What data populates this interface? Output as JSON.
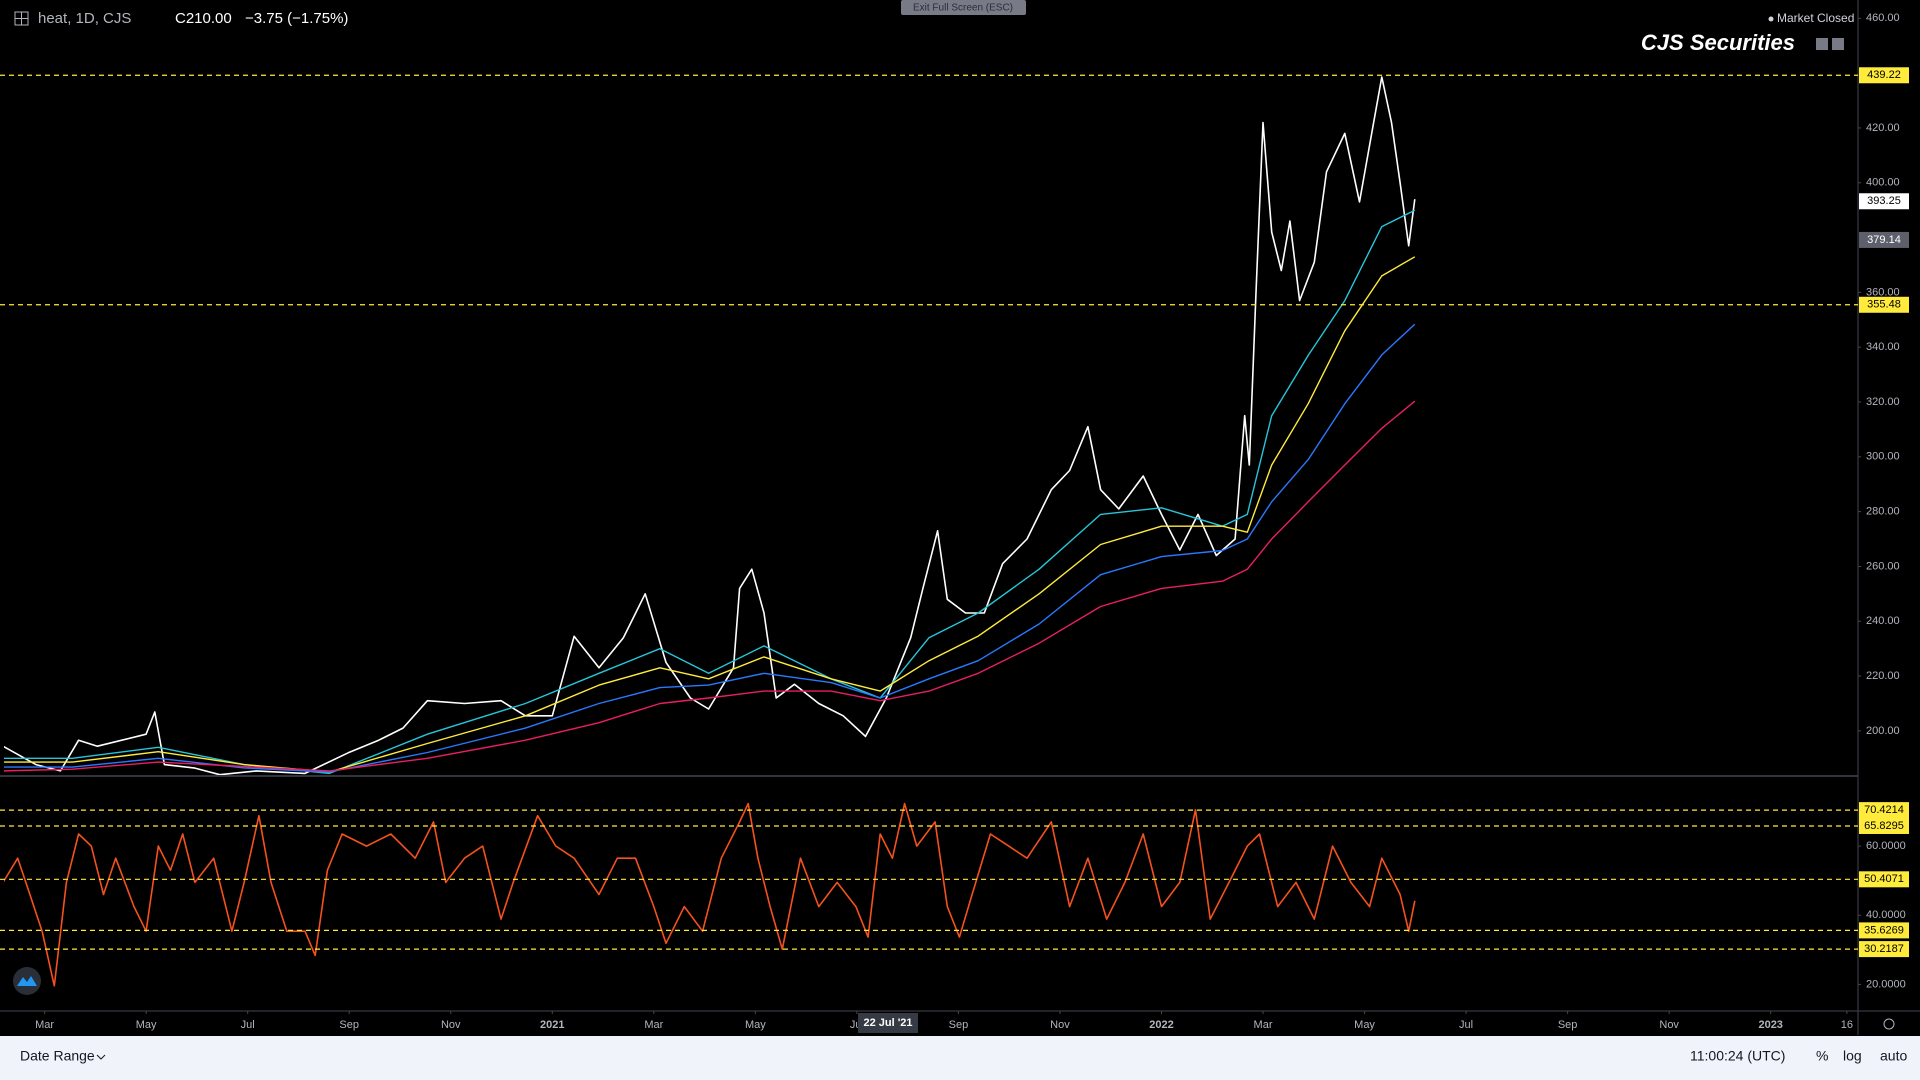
{
  "header": {
    "symbol": "heat, 1D, CJS",
    "quote": "C210.00",
    "change": "−3.75 (−1.75%)",
    "status": "Market Closed",
    "brand": "CJS Securities",
    "exit_button": "Exit Full Screen (ESC)"
  },
  "footer": {
    "date_range": "Date Range",
    "clock": "11:00:24 (UTC)",
    "percent": "%",
    "log": "log",
    "auto": "auto"
  },
  "chart_data": [
    {
      "type": "line",
      "xlim": [
        -0.8,
        35.7
      ],
      "ylim": [
        183.9,
        464.5
      ],
      "yticks": [
        {
          "value": 200,
          "label": "200.00"
        },
        {
          "value": 220,
          "label": "220.00"
        },
        {
          "value": 240,
          "label": "240.00"
        },
        {
          "value": 260,
          "label": "260.00"
        },
        {
          "value": 280,
          "label": "280.00"
        },
        {
          "value": 300,
          "label": "300.00"
        },
        {
          "value": 320,
          "label": "320.00"
        },
        {
          "value": 340,
          "label": "340.00"
        },
        {
          "value": 360,
          "label": "360.00"
        },
        {
          "value": 400,
          "label": "400.00"
        },
        {
          "value": 420,
          "label": "420.00"
        },
        {
          "value": 460,
          "label": "460.00"
        }
      ],
      "grid": false,
      "levels": [
        439.22,
        355.48
      ],
      "level_color": "#ffeb3b",
      "price_labels": [
        {
          "value": 393.25,
          "color": "#ffffff",
          "text_color": "#000000"
        },
        {
          "value": 379.14,
          "color": "#5d606b",
          "text_color": "#ffffff"
        }
      ],
      "series": [
        {
          "color": "#ffffff",
          "x": [
            -0.82,
            -0.17,
            0.31,
            0.67,
            1.04,
            1.52,
            2.0,
            2.17,
            2.36,
            2.96,
            3.45,
            4.17,
            5.13,
            5.98,
            6.58,
            7.06,
            7.54,
            8.27,
            8.99,
            9.47,
            10.0,
            10.43,
            10.92,
            11.4,
            11.83,
            12.24,
            12.72,
            13.08,
            13.57,
            13.69,
            13.93,
            14.17,
            14.41,
            14.77,
            15.25,
            15.73,
            16.17,
            16.58,
            17.06,
            17.3,
            17.59,
            17.78,
            18.14,
            18.51,
            18.87,
            19.35,
            19.83,
            20.19,
            20.55,
            20.8,
            21.16,
            21.64,
            22.0,
            22.36,
            22.72,
            23.08,
            23.45,
            23.64,
            23.73,
            23.86,
            24.0,
            24.17,
            24.36,
            24.53,
            24.72,
            25.01,
            25.25,
            25.61,
            25.9,
            26.14,
            26.34,
            26.53,
            26.7,
            26.87,
            26.99
          ],
          "values": [
            194.4,
            187.7,
            185.4,
            196.6,
            194.4,
            196.6,
            198.8,
            206.9,
            187.7,
            186.4,
            184,
            185.4,
            184.5,
            192,
            196.6,
            201,
            211,
            210,
            211,
            205.5,
            205.5,
            234.5,
            223,
            234,
            250,
            225,
            212,
            208,
            223,
            252,
            259,
            243,
            212,
            217,
            210,
            205.5,
            198,
            212,
            234,
            252,
            273,
            248,
            243,
            243,
            261,
            270,
            288,
            295,
            311,
            288,
            281,
            293,
            279,
            266,
            279,
            264,
            270,
            315,
            297,
            359,
            422,
            382,
            368,
            386,
            357,
            371,
            404,
            418,
            393,
            418,
            438.6,
            422,
            400,
            377,
            394
          ]
        },
        {
          "color": "#26c6da",
          "x": [
            -0.82,
            0.55,
            2.24,
            3.93,
            5.61,
            7.54,
            9.47,
            10.92,
            12.12,
            13.08,
            14.17,
            15.49,
            16.46,
            17.42,
            18.39,
            19.59,
            20.8,
            22.0,
            23.2,
            23.69,
            24.17,
            24.89,
            25.61,
            26.34,
            26.99
          ],
          "values": [
            190,
            190,
            194,
            187.7,
            184.5,
            198.8,
            210,
            221,
            230,
            221,
            231,
            219,
            212,
            234,
            243,
            259,
            279,
            281.4,
            274.7,
            279,
            315,
            337,
            357,
            384,
            390
          ]
        },
        {
          "color": "#ffeb3b",
          "x": [
            -0.82,
            0.55,
            2.24,
            3.93,
            5.61,
            7.54,
            9.47,
            10.92,
            12.12,
            13.08,
            14.17,
            15.49,
            16.46,
            17.42,
            18.39,
            19.59,
            20.8,
            22.0,
            23.2,
            23.69,
            24.17,
            24.89,
            25.61,
            26.34,
            26.99
          ],
          "values": [
            188.6,
            188.6,
            192.4,
            187.7,
            185,
            195.4,
            205.5,
            216.7,
            223,
            219,
            227,
            219,
            214.5,
            225.6,
            234.6,
            250,
            268,
            274.7,
            274.7,
            272.5,
            297,
            319.4,
            346,
            366,
            373
          ]
        },
        {
          "color": "#2979ff",
          "x": [
            -0.82,
            0.55,
            2.24,
            3.93,
            5.61,
            7.54,
            9.47,
            10.92,
            12.12,
            13.08,
            14.17,
            15.49,
            16.46,
            17.42,
            18.39,
            19.59,
            20.8,
            22.0,
            23.2,
            23.69,
            24.17,
            24.89,
            25.61,
            26.34,
            26.99
          ],
          "values": [
            186.8,
            186.8,
            190,
            186.5,
            185,
            192.1,
            201,
            210,
            215.8,
            216.7,
            221,
            217.6,
            212,
            219,
            225.6,
            239,
            257,
            263.6,
            265.8,
            270,
            283.6,
            299,
            319.4,
            337.2,
            348.4
          ]
        },
        {
          "color": "#e91e63",
          "x": [
            -0.82,
            0.55,
            2.24,
            3.93,
            5.61,
            7.54,
            9.47,
            10.92,
            12.12,
            13.08,
            14.17,
            15.49,
            16.46,
            17.42,
            18.39,
            19.59,
            20.8,
            22.0,
            23.2,
            23.69,
            24.17,
            24.89,
            25.61,
            26.34,
            26.99
          ],
          "values": [
            185.4,
            186,
            188.6,
            187,
            185.4,
            190,
            196.6,
            203,
            210,
            212,
            214.5,
            214.5,
            211,
            214.5,
            221,
            232,
            245.4,
            252,
            254.6,
            259,
            270,
            283.6,
            297,
            310.4,
            320.3
          ]
        }
      ]
    },
    {
      "type": "line",
      "xlim": [
        -0.8,
        35.7
      ],
      "ylim": [
        12.6,
        80
      ],
      "yticks": [
        {
          "value": 20,
          "label": "20.0000"
        },
        {
          "value": 40,
          "label": "40.0000"
        },
        {
          "value": 60,
          "label": "60.0000"
        }
      ],
      "grid": false,
      "levels": [
        70.4214,
        65.8295,
        50.4071,
        35.6269,
        30.2187
      ],
      "level_color": "#ffeb3b",
      "xticks": [
        {
          "value": 0,
          "label": "Mar"
        },
        {
          "value": 2,
          "label": "May"
        },
        {
          "value": 4,
          "label": "Jul"
        },
        {
          "value": 6,
          "label": "Sep"
        },
        {
          "value": 8,
          "label": "Nov"
        },
        {
          "value": 10,
          "label": "2021"
        },
        {
          "value": 12,
          "label": "Mar"
        },
        {
          "value": 14,
          "label": "May"
        },
        {
          "value": 16,
          "label": "Jul"
        },
        {
          "value": 18,
          "label": "Sep"
        },
        {
          "value": 20,
          "label": "Nov"
        },
        {
          "value": 22,
          "label": "2022"
        },
        {
          "value": 24,
          "label": "Mar"
        },
        {
          "value": 26,
          "label": "May"
        },
        {
          "value": 28,
          "label": "Jul"
        },
        {
          "value": 30,
          "label": "Sep"
        },
        {
          "value": 32,
          "label": "Nov"
        },
        {
          "value": 34,
          "label": "2023"
        },
        {
          "value": 35.5,
          "label": "16"
        }
      ],
      "crosshair_label": "22 Jul '21",
      "series": [
        {
          "color": "#f4511e",
          "x": [
            -0.82,
            -0.53,
            -0.29,
            -0.05,
            0.19,
            0.43,
            0.67,
            0.92,
            1.16,
            1.4,
            1.76,
            2.0,
            2.24,
            2.48,
            2.72,
            2.96,
            3.33,
            3.69,
            3.93,
            4.22,
            4.46,
            4.77,
            5.13,
            5.33,
            5.57,
            5.86,
            6.34,
            6.82,
            7.3,
            7.66,
            7.9,
            8.27,
            8.63,
            8.99,
            9.23,
            9.71,
            10.07,
            10.43,
            10.92,
            11.28,
            11.64,
            12.0,
            12.24,
            12.6,
            12.96,
            13.33,
            13.69,
            13.86,
            14.05,
            14.29,
            14.53,
            14.89,
            15.25,
            15.61,
            15.98,
            16.22,
            16.46,
            16.7,
            16.94,
            17.18,
            17.54,
            17.78,
            18.02,
            18.27,
            18.63,
            18.99,
            19.35,
            19.83,
            20.19,
            20.55,
            20.92,
            21.28,
            21.64,
            22.0,
            22.36,
            22.67,
            22.96,
            23.33,
            23.69,
            23.93,
            24.29,
            24.65,
            25.01,
            25.37,
            25.73,
            26.1,
            26.34,
            26.7,
            26.87,
            26.99
          ],
          "values": [
            49.5,
            56.5,
            46,
            35.4,
            19.6,
            49.5,
            63.5,
            60,
            46,
            56.5,
            42.5,
            35.4,
            60,
            53,
            63.5,
            49.5,
            56.5,
            35.4,
            49.5,
            68.8,
            49.5,
            35.4,
            35.4,
            28.4,
            53,
            63.5,
            60,
            63.5,
            56.5,
            67,
            49.5,
            56.5,
            60,
            38.9,
            49.5,
            68.8,
            60,
            56.5,
            46,
            56.5,
            56.5,
            42.5,
            31.9,
            42.5,
            35.4,
            56.5,
            67,
            72.3,
            56.5,
            42.5,
            30.2,
            56.5,
            42.5,
            49.5,
            42.5,
            33.7,
            63.5,
            56.5,
            72.3,
            60,
            67,
            42.5,
            33.7,
            46,
            63.5,
            60,
            56.5,
            67,
            42.5,
            56.5,
            38.9,
            49.5,
            63.5,
            42.5,
            49.5,
            70.5,
            38.9,
            49.5,
            60,
            63.5,
            42.5,
            49.5,
            38.9,
            60,
            49.5,
            42.5,
            56.5,
            46,
            35.4,
            44.2
          ]
        }
      ]
    }
  ]
}
